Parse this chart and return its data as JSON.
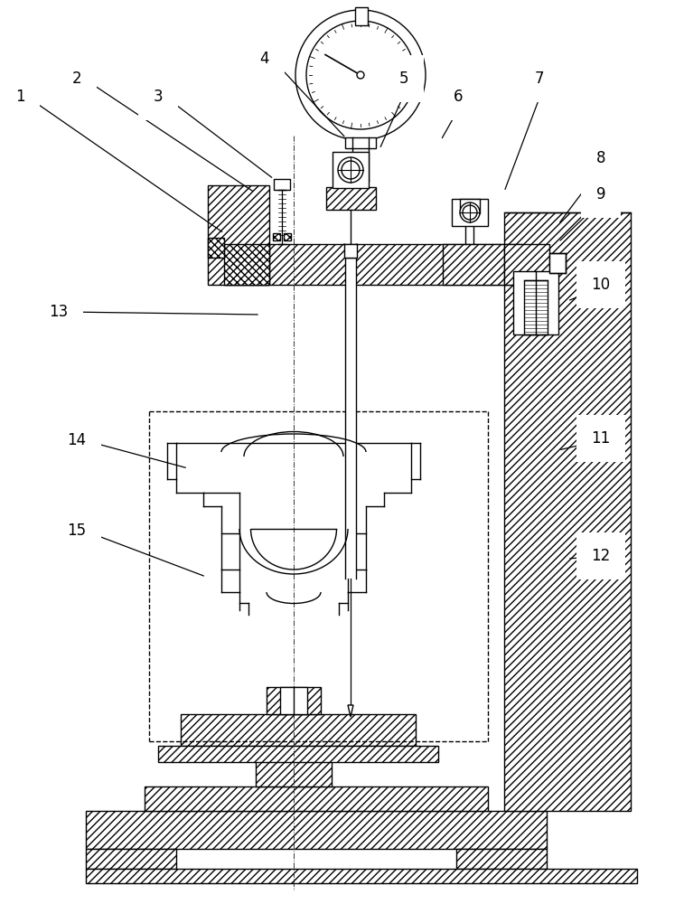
{
  "bg_color": "#ffffff",
  "line_color": "#000000",
  "label_fontsize": 12,
  "figsize": [
    7.57,
    10.0
  ],
  "dpi": 100,
  "labels": [
    [
      "1",
      22,
      107
    ],
    [
      "2",
      85,
      87
    ],
    [
      "3",
      175,
      107
    ],
    [
      "4",
      293,
      65
    ],
    [
      "5",
      447,
      87
    ],
    [
      "6",
      507,
      107
    ],
    [
      "7",
      597,
      87
    ],
    [
      "8",
      665,
      175
    ],
    [
      "9",
      665,
      215
    ],
    [
      "10",
      665,
      315
    ],
    [
      "11",
      665,
      485
    ],
    [
      "12",
      665,
      615
    ],
    [
      "13",
      65,
      345
    ],
    [
      "14",
      85,
      487
    ],
    [
      "15",
      85,
      587
    ]
  ],
  "label_lines": [
    [
      "1",
      22,
      107,
      248,
      258
    ],
    [
      "2",
      85,
      87,
      282,
      213
    ],
    [
      "3",
      175,
      107,
      303,
      198
    ],
    [
      "4",
      293,
      65,
      383,
      153
    ],
    [
      "5",
      447,
      87,
      420,
      165
    ],
    [
      "6",
      507,
      107,
      488,
      155
    ],
    [
      "7",
      597,
      87,
      558,
      212
    ],
    [
      "8",
      665,
      175,
      618,
      248
    ],
    [
      "9",
      665,
      215,
      618,
      268
    ],
    [
      "10",
      665,
      315,
      628,
      333
    ],
    [
      "11",
      665,
      485,
      618,
      498
    ],
    [
      "12",
      665,
      615,
      628,
      618
    ],
    [
      "13",
      65,
      345,
      288,
      348
    ],
    [
      "14",
      85,
      487,
      208,
      518
    ],
    [
      "15",
      85,
      587,
      228,
      638
    ]
  ]
}
